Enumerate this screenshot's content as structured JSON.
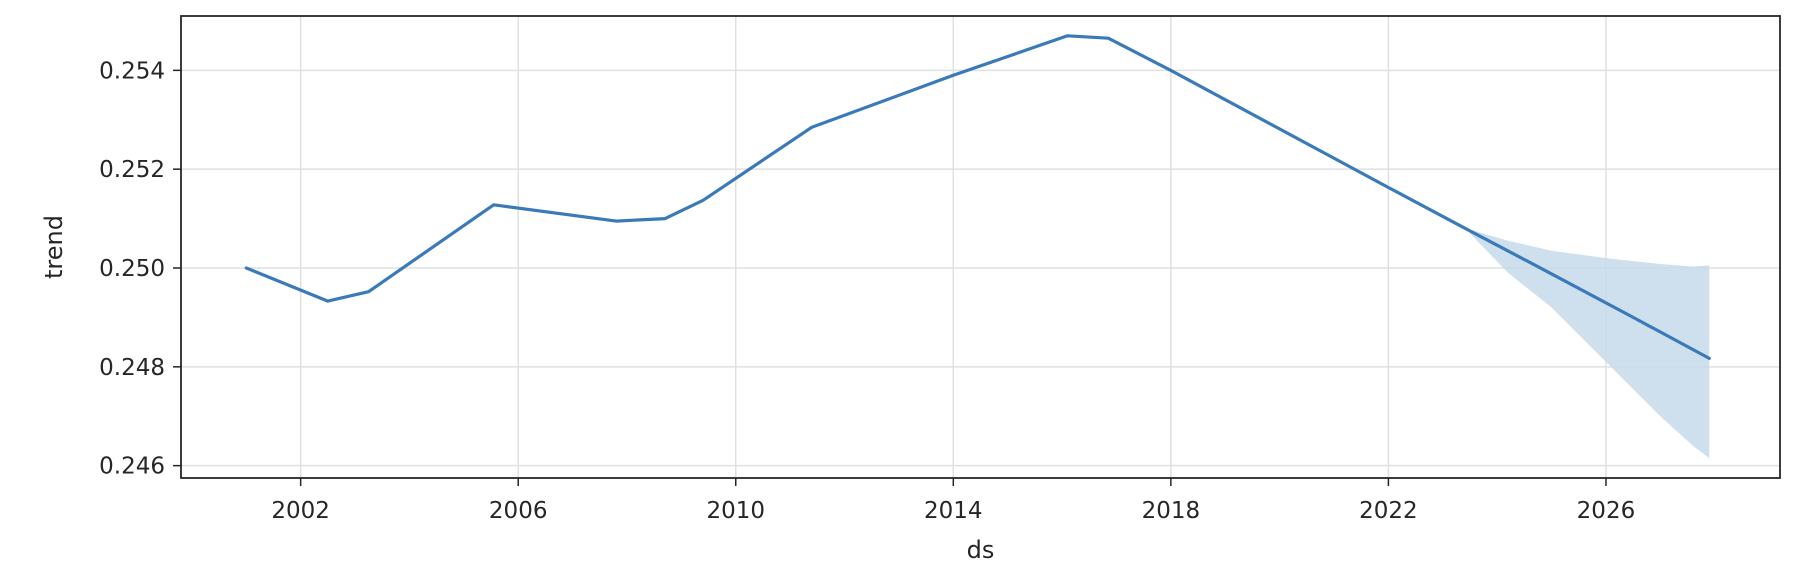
{
  "chart_data": {
    "type": "line",
    "xlabel": "ds",
    "ylabel": "trend",
    "xlim": [
      1999.8,
      2029.2
    ],
    "ylim": [
      0.24575,
      0.2551
    ],
    "xticks": [
      2002,
      2006,
      2010,
      2014,
      2018,
      2022,
      2026
    ],
    "xtick_labels": [
      "2002",
      "2006",
      "2010",
      "2014",
      "2018",
      "2022",
      "2026"
    ],
    "yticks": [
      0.246,
      0.248,
      0.25,
      0.252,
      0.254
    ],
    "ytick_labels": [
      "0.246",
      "0.248",
      "0.250",
      "0.252",
      "0.254"
    ],
    "grid": true,
    "series": [
      {
        "color": "#3a7ab8",
        "x": [
          2001.0,
          2002.5,
          2003.25,
          2005.55,
          2007.8,
          2008.7,
          2009.4,
          2011.4,
          2014.0,
          2016.1,
          2016.85,
          2018.0,
          2022.0,
          2023.5,
          2025.0,
          2026.5,
          2027.9
        ],
        "y": [
          0.25,
          0.24933,
          0.24952,
          0.25128,
          0.25095,
          0.251,
          0.25137,
          0.25285,
          0.2539,
          0.2547,
          0.25465,
          0.254,
          0.25163,
          0.25075,
          0.24988,
          0.249,
          0.24817
        ]
      }
    ],
    "uncertainty_band": {
      "color": "#c5dbeb",
      "x": [
        2023.5,
        2024.2,
        2025.0,
        2026.0,
        2027.0,
        2027.6,
        2027.9
      ],
      "upper": [
        0.25078,
        0.25055,
        0.25035,
        0.2502,
        0.25008,
        0.25003,
        0.25005
      ],
      "lower": [
        0.2507,
        0.2499,
        0.2492,
        0.2481,
        0.247,
        0.2464,
        0.24615
      ]
    }
  }
}
